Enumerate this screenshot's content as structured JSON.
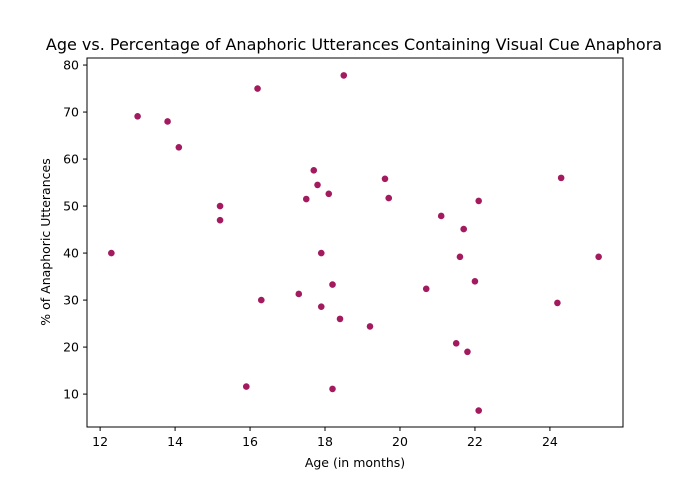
{
  "chart_data": {
    "type": "scatter",
    "title": "Age vs. Percentage of Anaphoric Utterances Containing Visual Cue Anaphora",
    "xlabel": "Age (in months)",
    "ylabel": "% of Anaphoric Utterances",
    "xlim": [
      11.65,
      25.95
    ],
    "ylim": [
      3.0,
      81.5
    ],
    "xticks": [
      12,
      14,
      16,
      18,
      20,
      22,
      24
    ],
    "yticks": [
      10,
      20,
      30,
      40,
      50,
      60,
      70,
      80
    ],
    "grid": false,
    "marker_color": "#a31a5f",
    "points": [
      {
        "x": 12.3,
        "y": 40.0
      },
      {
        "x": 13.0,
        "y": 69.1
      },
      {
        "x": 13.8,
        "y": 68.0
      },
      {
        "x": 14.1,
        "y": 62.5
      },
      {
        "x": 15.2,
        "y": 50.0
      },
      {
        "x": 15.2,
        "y": 47.0
      },
      {
        "x": 15.9,
        "y": 11.6
      },
      {
        "x": 16.2,
        "y": 75.0
      },
      {
        "x": 16.3,
        "y": 30.0
      },
      {
        "x": 17.3,
        "y": 31.3
      },
      {
        "x": 17.5,
        "y": 51.5
      },
      {
        "x": 17.7,
        "y": 57.6
      },
      {
        "x": 17.8,
        "y": 54.5
      },
      {
        "x": 17.9,
        "y": 40.0
      },
      {
        "x": 17.9,
        "y": 28.6
      },
      {
        "x": 18.1,
        "y": 52.6
      },
      {
        "x": 18.2,
        "y": 33.3
      },
      {
        "x": 18.2,
        "y": 11.1
      },
      {
        "x": 18.4,
        "y": 26.0
      },
      {
        "x": 18.5,
        "y": 77.8
      },
      {
        "x": 19.2,
        "y": 24.4
      },
      {
        "x": 19.6,
        "y": 55.8
      },
      {
        "x": 19.7,
        "y": 51.7
      },
      {
        "x": 20.7,
        "y": 32.4
      },
      {
        "x": 21.1,
        "y": 47.9
      },
      {
        "x": 21.5,
        "y": 20.8
      },
      {
        "x": 21.6,
        "y": 39.2
      },
      {
        "x": 21.7,
        "y": 45.1
      },
      {
        "x": 21.8,
        "y": 19.0
      },
      {
        "x": 22.0,
        "y": 34.0
      },
      {
        "x": 22.1,
        "y": 51.1
      },
      {
        "x": 22.1,
        "y": 6.5
      },
      {
        "x": 24.2,
        "y": 29.4
      },
      {
        "x": 24.3,
        "y": 56.0
      },
      {
        "x": 25.3,
        "y": 39.2
      }
    ]
  }
}
